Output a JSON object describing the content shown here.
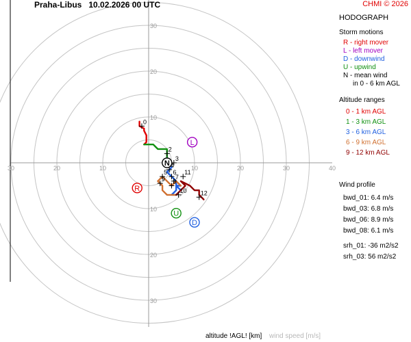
{
  "header": {
    "station": "Praha-Libus",
    "datetime": "10.02.2026 00 UTC",
    "copyright": "CHMI © 2026"
  },
  "panel": {
    "title": "HODOGRAPH",
    "storm_heading": "Storm motions",
    "storm_legend": [
      {
        "text": "R - right mover",
        "color": "#e00000"
      },
      {
        "text": "L - left mover",
        "color": "#a000c0"
      },
      {
        "text": "D - downwind",
        "color": "#2060e0"
      },
      {
        "text": "U - upwind",
        "color": "#109010"
      },
      {
        "text": "N - mean wind",
        "color": "#000000"
      },
      {
        "text": "in 0 - 6 km AGL",
        "color": "#000000",
        "sub": true
      }
    ],
    "alt_heading": "Altitude ranges",
    "alt_legend": [
      {
        "text": "0 - 1 km AGL",
        "color": "#e00000"
      },
      {
        "text": "1 - 3 km AGL",
        "color": "#109010"
      },
      {
        "text": "3 - 6 km AGL",
        "color": "#2060e0"
      },
      {
        "text": "6 - 9 km AGL",
        "color": "#d07030"
      },
      {
        "text": "9 - 12 km AGL",
        "color": "#900000"
      }
    ]
  },
  "wind_profile": {
    "heading": "Wind profile",
    "rows": [
      "bwd_01: 6.4 m/s",
      "bwd_03: 6.8 m/s",
      "bwd_06: 8.9 m/s",
      "bwd_08: 6.1 m/s",
      "",
      "srh_01: -36 m2/s2",
      "srh_03: 56 m2/s2"
    ]
  },
  "footer": {
    "altitude_label": "altitude !AGL! [km]",
    "speed_label": "wind speed [m/s]"
  },
  "chart_data": {
    "type": "line",
    "rings": [
      5,
      10,
      15,
      20,
      25,
      30,
      35
    ],
    "axis_ticks": {
      "top": [
        10,
        20,
        30
      ],
      "bottom": [
        10,
        20,
        30
      ],
      "left": [
        10,
        20,
        30
      ],
      "right": [
        10,
        20,
        30,
        40
      ]
    },
    "series": [
      {
        "color": "#e00000",
        "points": [
          [
            -2,
            9
          ],
          [
            -2,
            8
          ],
          [
            -1,
            7.5
          ],
          [
            -1,
            7
          ],
          [
            -0.5,
            6
          ],
          [
            -0.5,
            5
          ],
          [
            -0.5,
            4.5
          ],
          [
            -1,
            4
          ]
        ]
      },
      {
        "color": "#109010",
        "points": [
          [
            -1,
            4
          ],
          [
            0,
            4
          ],
          [
            1,
            4
          ],
          [
            1.5,
            3.5
          ],
          [
            2,
            3
          ],
          [
            3,
            3
          ],
          [
            4,
            3
          ],
          [
            4,
            2
          ],
          [
            4,
            1
          ]
        ]
      },
      {
        "color": "#2060e0",
        "points": [
          [
            4,
            1
          ],
          [
            4.5,
            0
          ],
          [
            5,
            -1
          ],
          [
            4,
            -2
          ],
          [
            5,
            -3
          ],
          [
            6,
            -4
          ],
          [
            6,
            -6
          ],
          [
            5,
            -7
          ],
          [
            6,
            -7
          ],
          [
            7,
            -6
          ],
          [
            6,
            -5
          ],
          [
            7,
            -5
          ]
        ]
      },
      {
        "color": "#d07030",
        "points": [
          [
            7,
            -5
          ],
          [
            6,
            -4
          ],
          [
            5,
            -5
          ],
          [
            4,
            -4
          ],
          [
            3,
            -3
          ],
          [
            2,
            -4
          ],
          [
            3,
            -5
          ],
          [
            3,
            -6
          ],
          [
            4,
            -7
          ],
          [
            6,
            -7
          ]
        ]
      },
      {
        "color": "#900000",
        "points": [
          [
            6,
            -7
          ],
          [
            7,
            -6
          ],
          [
            8,
            -5
          ],
          [
            7,
            -4
          ],
          [
            9,
            -5
          ],
          [
            10,
            -6
          ],
          [
            11,
            -6
          ],
          [
            11,
            -7
          ],
          [
            12,
            -8
          ]
        ]
      }
    ],
    "markers": [
      {
        "label": "0",
        "u": -1.5,
        "v": 8
      },
      {
        "label": "2",
        "u": 4,
        "v": 2
      },
      {
        "label": "3",
        "u": 5.5,
        "v": 0
      },
      {
        "label": "4",
        "u": 4.5,
        "v": -1.5
      },
      {
        "label": "5",
        "u": 3,
        "v": -3
      },
      {
        "label": "6",
        "u": 5,
        "v": -3
      },
      {
        "label": "7",
        "u": 5.5,
        "v": -4
      },
      {
        "label": "8",
        "u": 5,
        "v": -5
      },
      {
        "label": "9",
        "u": 2.5,
        "v": -4.5
      },
      {
        "label": "10",
        "u": 6.5,
        "v": -7
      },
      {
        "label": "11",
        "u": 7.5,
        "v": -3
      },
      {
        "label": "12",
        "u": 11,
        "v": -7.5
      }
    ],
    "storm_motions": [
      {
        "letter": "R",
        "u": -2.5,
        "v": -5.5,
        "color": "#e00000"
      },
      {
        "letter": "L",
        "u": 9.5,
        "v": 4.5,
        "color": "#a000c0"
      },
      {
        "letter": "D",
        "u": 10,
        "v": -13,
        "color": "#2060e0"
      },
      {
        "letter": "U",
        "u": 6,
        "v": -11,
        "color": "#109010"
      },
      {
        "letter": "N",
        "u": 4,
        "v": 0,
        "color": "#000000"
      }
    ]
  }
}
